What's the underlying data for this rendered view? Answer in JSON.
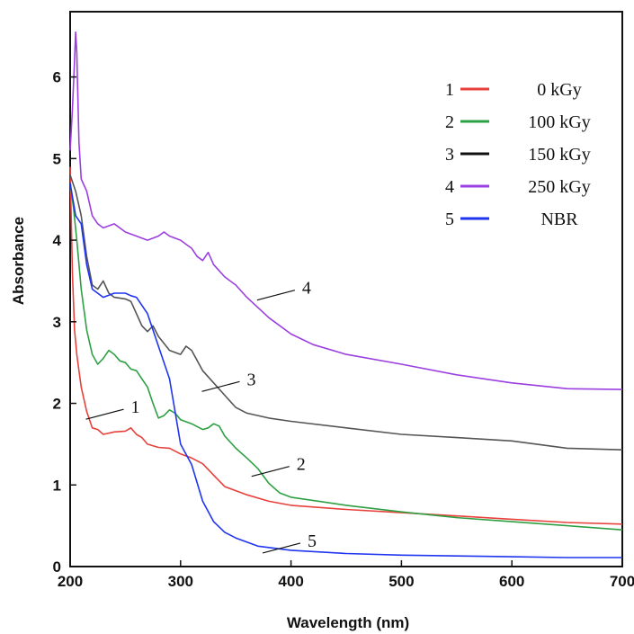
{
  "chart_data": {
    "type": "line",
    "title": "",
    "xlabel": "Wavelength (nm)",
    "ylabel": "Absorbance",
    "xlim": [
      200,
      700
    ],
    "ylim": [
      0,
      6.8
    ],
    "xticks": [
      "200",
      "300",
      "400",
      "500",
      "600",
      "700"
    ],
    "yticks": [
      "0",
      "1",
      "2",
      "3",
      "4",
      "5",
      "6"
    ],
    "legend_position": "top-right",
    "grid": false,
    "series": [
      {
        "id": "1",
        "name": "0 kGy",
        "color": "#e8413c",
        "points": [
          [
            200,
            4.9
          ],
          [
            202,
            3.6
          ],
          [
            204,
            2.9
          ],
          [
            206,
            2.6
          ],
          [
            208,
            2.4
          ],
          [
            210,
            2.2
          ],
          [
            215,
            1.9
          ],
          [
            220,
            1.7
          ],
          [
            225,
            1.68
          ],
          [
            230,
            1.62
          ],
          [
            240,
            1.65
          ],
          [
            250,
            1.66
          ],
          [
            255,
            1.7
          ],
          [
            260,
            1.62
          ],
          [
            265,
            1.58
          ],
          [
            270,
            1.5
          ],
          [
            280,
            1.46
          ],
          [
            290,
            1.45
          ],
          [
            300,
            1.38
          ],
          [
            310,
            1.33
          ],
          [
            320,
            1.26
          ],
          [
            330,
            1.12
          ],
          [
            340,
            0.98
          ],
          [
            360,
            0.88
          ],
          [
            380,
            0.8
          ],
          [
            400,
            0.75
          ],
          [
            450,
            0.7
          ],
          [
            500,
            0.66
          ],
          [
            550,
            0.62
          ],
          [
            600,
            0.58
          ],
          [
            650,
            0.54
          ],
          [
            700,
            0.52
          ]
        ]
      },
      {
        "id": "2",
        "name": "100 kGy",
        "color": "#2ea043",
        "points": [
          [
            200,
            4.7
          ],
          [
            203,
            4.4
          ],
          [
            206,
            4.0
          ],
          [
            210,
            3.4
          ],
          [
            215,
            2.9
          ],
          [
            220,
            2.6
          ],
          [
            225,
            2.48
          ],
          [
            230,
            2.55
          ],
          [
            235,
            2.65
          ],
          [
            240,
            2.6
          ],
          [
            245,
            2.52
          ],
          [
            250,
            2.5
          ],
          [
            255,
            2.42
          ],
          [
            260,
            2.4
          ],
          [
            265,
            2.3
          ],
          [
            270,
            2.2
          ],
          [
            275,
            2.0
          ],
          [
            280,
            1.82
          ],
          [
            285,
            1.85
          ],
          [
            290,
            1.92
          ],
          [
            295,
            1.88
          ],
          [
            300,
            1.8
          ],
          [
            310,
            1.75
          ],
          [
            320,
            1.68
          ],
          [
            325,
            1.7
          ],
          [
            330,
            1.75
          ],
          [
            335,
            1.72
          ],
          [
            340,
            1.6
          ],
          [
            350,
            1.45
          ],
          [
            360,
            1.33
          ],
          [
            370,
            1.2
          ],
          [
            380,
            1.02
          ],
          [
            390,
            0.9
          ],
          [
            400,
            0.85
          ],
          [
            450,
            0.75
          ],
          [
            500,
            0.67
          ],
          [
            550,
            0.6
          ],
          [
            600,
            0.55
          ],
          [
            650,
            0.5
          ],
          [
            700,
            0.45
          ]
        ]
      },
      {
        "id": "3",
        "name": "150 kGy",
        "color": "#555555",
        "points": [
          [
            200,
            4.8
          ],
          [
            205,
            4.6
          ],
          [
            210,
            4.3
          ],
          [
            215,
            3.8
          ],
          [
            220,
            3.45
          ],
          [
            225,
            3.4
          ],
          [
            230,
            3.5
          ],
          [
            235,
            3.35
          ],
          [
            240,
            3.3
          ],
          [
            250,
            3.28
          ],
          [
            255,
            3.25
          ],
          [
            260,
            3.1
          ],
          [
            265,
            2.95
          ],
          [
            270,
            2.88
          ],
          [
            275,
            2.95
          ],
          [
            280,
            2.82
          ],
          [
            290,
            2.65
          ],
          [
            300,
            2.6
          ],
          [
            305,
            2.7
          ],
          [
            310,
            2.65
          ],
          [
            320,
            2.4
          ],
          [
            330,
            2.25
          ],
          [
            340,
            2.1
          ],
          [
            350,
            1.95
          ],
          [
            360,
            1.88
          ],
          [
            380,
            1.82
          ],
          [
            400,
            1.78
          ],
          [
            450,
            1.7
          ],
          [
            500,
            1.62
          ],
          [
            550,
            1.58
          ],
          [
            600,
            1.54
          ],
          [
            650,
            1.45
          ],
          [
            700,
            1.43
          ]
        ]
      },
      {
        "id": "4",
        "name": "250 kGy",
        "color": "#9b3fe0",
        "points": [
          [
            200,
            5.1
          ],
          [
            202,
            5.6
          ],
          [
            204,
            6.2
          ],
          [
            205,
            6.55
          ],
          [
            206,
            6.3
          ],
          [
            208,
            5.2
          ],
          [
            210,
            4.75
          ],
          [
            215,
            4.6
          ],
          [
            220,
            4.3
          ],
          [
            225,
            4.2
          ],
          [
            230,
            4.15
          ],
          [
            240,
            4.2
          ],
          [
            250,
            4.1
          ],
          [
            260,
            4.05
          ],
          [
            270,
            4.0
          ],
          [
            280,
            4.05
          ],
          [
            285,
            4.1
          ],
          [
            290,
            4.05
          ],
          [
            300,
            4.0
          ],
          [
            305,
            3.95
          ],
          [
            310,
            3.9
          ],
          [
            315,
            3.8
          ],
          [
            320,
            3.75
          ],
          [
            325,
            3.85
          ],
          [
            330,
            3.7
          ],
          [
            340,
            3.55
          ],
          [
            350,
            3.45
          ],
          [
            360,
            3.3
          ],
          [
            380,
            3.05
          ],
          [
            400,
            2.85
          ],
          [
            420,
            2.72
          ],
          [
            450,
            2.6
          ],
          [
            500,
            2.48
          ],
          [
            550,
            2.35
          ],
          [
            600,
            2.25
          ],
          [
            650,
            2.18
          ],
          [
            700,
            2.17
          ]
        ]
      },
      {
        "id": "5",
        "name": "NBR",
        "color": "#1f35f0",
        "points": [
          [
            200,
            4.7
          ],
          [
            205,
            4.3
          ],
          [
            210,
            4.2
          ],
          [
            215,
            3.7
          ],
          [
            220,
            3.4
          ],
          [
            230,
            3.3
          ],
          [
            240,
            3.35
          ],
          [
            250,
            3.35
          ],
          [
            255,
            3.32
          ],
          [
            260,
            3.3
          ],
          [
            270,
            3.1
          ],
          [
            280,
            2.7
          ],
          [
            290,
            2.3
          ],
          [
            300,
            1.5
          ],
          [
            310,
            1.25
          ],
          [
            320,
            0.8
          ],
          [
            330,
            0.55
          ],
          [
            340,
            0.42
          ],
          [
            350,
            0.35
          ],
          [
            370,
            0.25
          ],
          [
            400,
            0.2
          ],
          [
            450,
            0.16
          ],
          [
            500,
            0.14
          ],
          [
            550,
            0.13
          ],
          [
            600,
            0.12
          ],
          [
            650,
            0.11
          ],
          [
            700,
            0.11
          ]
        ]
      }
    ],
    "curve_labels": [
      {
        "text": "1",
        "x": 255,
        "y": 1.96
      },
      {
        "text": "2",
        "x": 405,
        "y": 1.26
      },
      {
        "text": "3",
        "x": 360,
        "y": 2.3
      },
      {
        "text": "4",
        "x": 410,
        "y": 3.42
      },
      {
        "text": "5",
        "x": 415,
        "y": 0.32
      }
    ],
    "legend": [
      {
        "num": "1",
        "label": "0 kGy",
        "color": "#e8413c"
      },
      {
        "num": "2",
        "label": "100 kGy",
        "color": "#2ea043"
      },
      {
        "num": "3",
        "label": "150 kGy",
        "color": "#111111"
      },
      {
        "num": "4",
        "label": "250 kGy",
        "color": "#9b3fe0"
      },
      {
        "num": "5",
        "label": "NBR",
        "color": "#1f35f0"
      }
    ]
  }
}
